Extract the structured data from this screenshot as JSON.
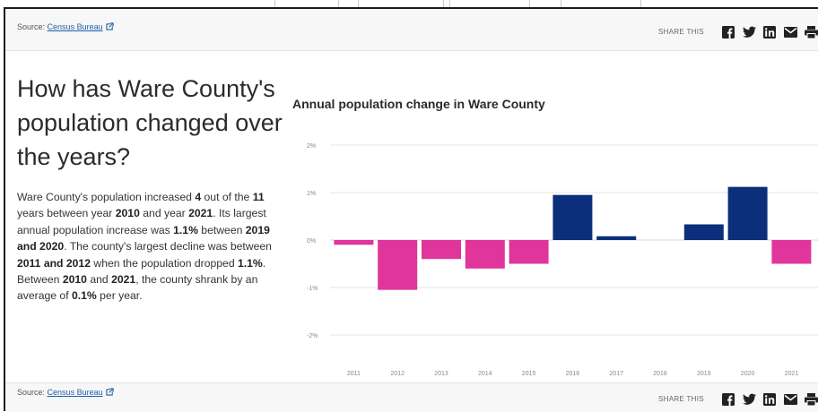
{
  "source": {
    "label": "Source:",
    "link": "Census Bureau"
  },
  "share": {
    "label": "SHARE THIS",
    "icons": [
      "facebook-icon",
      "twitter-icon",
      "linkedin-icon",
      "email-icon",
      "print-icon"
    ]
  },
  "heading": "How has Ware County's population changed over the years?",
  "paragraph": [
    {
      "t": "Ware County's population increased ",
      "b": false
    },
    {
      "t": "4",
      "b": true
    },
    {
      "t": " out of the ",
      "b": false
    },
    {
      "t": "11",
      "b": true
    },
    {
      "t": " years between year ",
      "b": false
    },
    {
      "t": "2010",
      "b": true
    },
    {
      "t": " and year ",
      "b": false
    },
    {
      "t": "2021",
      "b": true
    },
    {
      "t": ". Its largest annual population increase was ",
      "b": false
    },
    {
      "t": "1.1%",
      "b": true
    },
    {
      "t": " between ",
      "b": false
    },
    {
      "t": "2019 and 2020",
      "b": true
    },
    {
      "t": ". The county's largest decline was between ",
      "b": false
    },
    {
      "t": "2011 and 2012",
      "b": true
    },
    {
      "t": " when the population dropped ",
      "b": false
    },
    {
      "t": "1.1%",
      "b": true
    },
    {
      "t": ". Between ",
      "b": false
    },
    {
      "t": "2010",
      "b": true
    },
    {
      "t": " and ",
      "b": false
    },
    {
      "t": "2021",
      "b": true
    },
    {
      "t": ", the county shrank by an average of ",
      "b": false
    },
    {
      "t": "0.1%",
      "b": true
    },
    {
      "t": " per year.",
      "b": false
    }
  ],
  "colors": {
    "increase": "#0b2f7a",
    "decrease": "#e0359a",
    "grid": "#e6e6e6",
    "link": "#1f5fa8"
  },
  "chart_data": {
    "type": "bar",
    "title": "Annual population change in Ware County",
    "categories": [
      "2011",
      "2012",
      "2013",
      "2014",
      "2015",
      "2016",
      "2017",
      "2018",
      "2019",
      "2020",
      "2021"
    ],
    "values": [
      -0.1,
      -1.05,
      -0.4,
      -0.6,
      -0.5,
      0.95,
      0.08,
      0.0,
      0.33,
      1.12,
      -0.5
    ],
    "yticks": [
      2,
      1,
      0,
      -1,
      -2
    ],
    "ytick_labels": [
      "2%",
      "1%",
      "0%",
      "-1%",
      "-2%"
    ],
    "ylim": [
      -2,
      2
    ],
    "grid": true
  }
}
